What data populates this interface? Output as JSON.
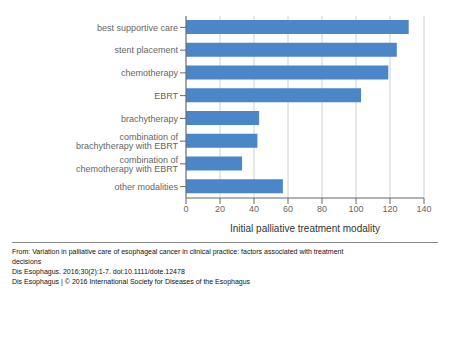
{
  "chart_data": {
    "type": "bar",
    "orientation": "horizontal",
    "categories": [
      "other modalities",
      "combination of chemotherapy with EBRT",
      "combination of brachytherapy with EBRT",
      "brachytherapy",
      "EBRT",
      "chemotherapy",
      "stent placement",
      "best supportive care"
    ],
    "values": [
      57,
      33,
      42,
      43,
      103,
      119,
      124,
      131
    ],
    "color": "#4a86c8",
    "xlim": [
      0,
      140
    ],
    "xticks": [
      0,
      20,
      40,
      60,
      80,
      100,
      120,
      140
    ],
    "x_label": "Initial palliative treatment modality",
    "grid": true,
    "annotations": [
      "From: Variation in palliative care of esophageal cancer in clinical practice: factors associated with treatment",
      "decisions",
      "Dis Esophagus. 2016;30(2):1-7. doi:10.1111/dote.12478",
      "Dis Esophagus | © 2016 International Society for Diseases of the Esophagus"
    ]
  }
}
